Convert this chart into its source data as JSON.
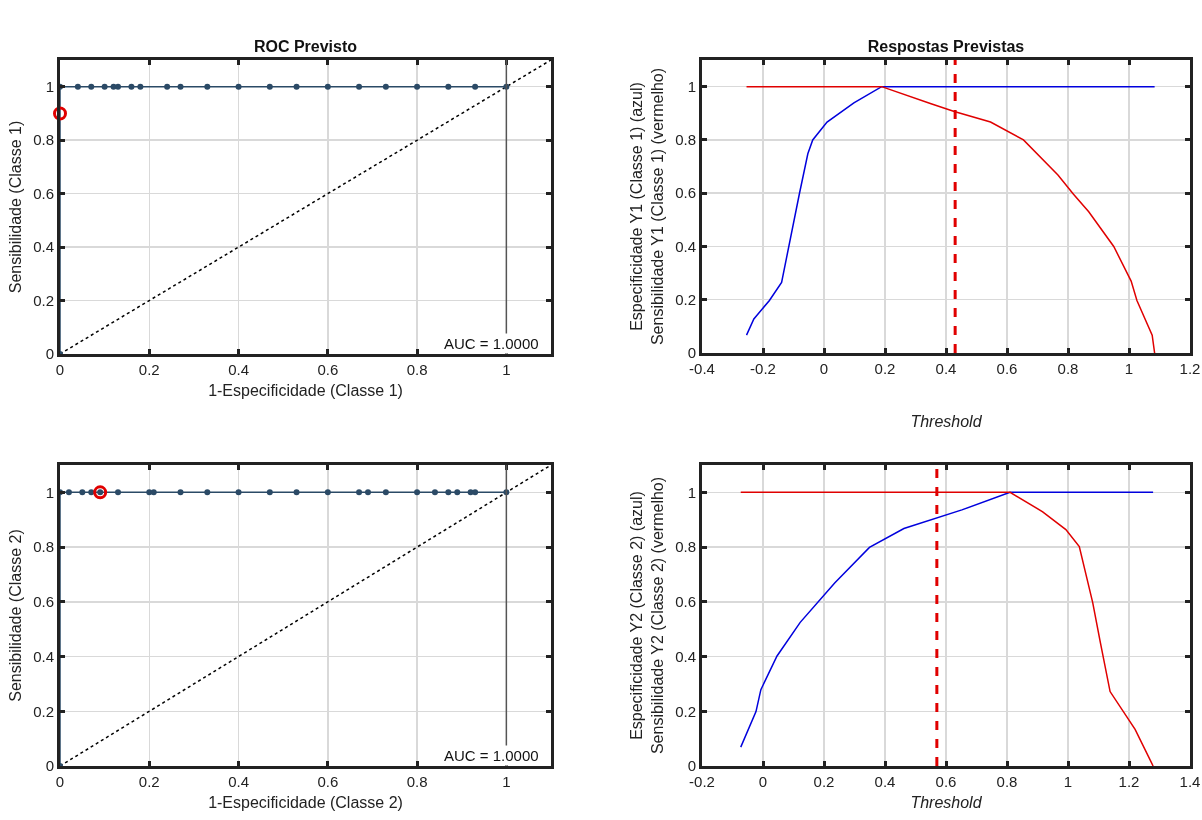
{
  "chart_data": [
    {
      "type": "line",
      "title": "ROC Previsto",
      "xlabel": "1-Especificidade (Classe 1)",
      "ylabel": "Sensibilidade (Classe 1)",
      "xlim": [
        0,
        1.1
      ],
      "ylim": [
        0,
        1.1
      ],
      "xticks": [
        0,
        0.2,
        0.4,
        0.6,
        0.8,
        1
      ],
      "yticks": [
        0,
        0.2,
        0.4,
        0.6,
        0.8,
        1
      ],
      "grid": true,
      "annotations": [
        "AUC = 1.0000"
      ],
      "ref_lines": [
        {
          "axis": "x",
          "value": 1,
          "color": "#555555"
        }
      ],
      "series": [
        {
          "color": "#000000",
          "line_style": "dotted",
          "marker": "none",
          "x": [
            0,
            1.1
          ],
          "values": [
            0,
            1.1
          ]
        },
        {
          "color": "#2b4a66",
          "marker": "circle",
          "x": [
            0,
            0,
            0.04,
            0.07,
            0.1,
            0.12,
            0.13,
            0.16,
            0.18,
            0.24,
            0.27,
            0.33,
            0.4,
            0.47,
            0.53,
            0.6,
            0.67,
            0.73,
            0.8,
            0.87,
            0.93,
            1
          ],
          "values": [
            0,
            1,
            1,
            1,
            1,
            1,
            1,
            1,
            1,
            1,
            1,
            1,
            1,
            1,
            1,
            1,
            1,
            1,
            1,
            1,
            1,
            1
          ]
        },
        {
          "type": "scatter",
          "color": "#e00000",
          "marker": "circle",
          "x": [
            0
          ],
          "values": [
            0.9
          ]
        }
      ]
    },
    {
      "type": "line",
      "title": "Respostas Previstas",
      "xlabel": "Threshold",
      "ylabel": "Especificidade Y1 (Classe 1) (azul)\nSensibilidade Y1 (Classe 1) (vermelho)",
      "xlim": [
        -0.4,
        1.2
      ],
      "ylim": [
        0,
        1.1
      ],
      "xticks": [
        -0.4,
        -0.2,
        0,
        0.2,
        0.4,
        0.6,
        0.8,
        1,
        1.2
      ],
      "yticks": [
        0,
        0.2,
        0.4,
        0.6,
        0.8,
        1
      ],
      "grid": true,
      "ref_lines": [
        {
          "axis": "x",
          "value": 0.43,
          "color": "#e00000",
          "line_style": "dashed"
        }
      ],
      "series": [
        {
          "color": "#0000dd",
          "marker": "none",
          "x": [
            -0.254,
            -0.23,
            -0.179,
            -0.139,
            -0.081,
            -0.053,
            -0.037,
            0.01,
            0.098,
            0.189,
            1.084
          ],
          "values": [
            0.067,
            0.128,
            0.197,
            0.265,
            0.596,
            0.748,
            0.8,
            0.867,
            0.939,
            1,
            1
          ]
        },
        {
          "color": "#e00000",
          "marker": "none",
          "x": [
            -0.254,
            0.189,
            0.351,
            0.427,
            0.546,
            0.654,
            0.767,
            0.818,
            0.868,
            0.95,
            1.007,
            1.026,
            1.076,
            1.084
          ],
          "values": [
            1,
            1,
            0.936,
            0.907,
            0.867,
            0.8,
            0.668,
            0.596,
            0.53,
            0.4,
            0.27,
            0.197,
            0.067,
            0
          ]
        }
      ]
    },
    {
      "type": "line",
      "xlabel": "1-Especificidade (Classe 2)",
      "ylabel": "Sensibilidade (Classe 2)",
      "xlim": [
        0,
        1.1
      ],
      "ylim": [
        0,
        1.1
      ],
      "xticks": [
        0,
        0.2,
        0.4,
        0.6,
        0.8,
        1
      ],
      "yticks": [
        0,
        0.2,
        0.4,
        0.6,
        0.8,
        1
      ],
      "grid": true,
      "annotations": [
        "AUC = 1.0000"
      ],
      "ref_lines": [
        {
          "axis": "x",
          "value": 1,
          "color": "#555555"
        }
      ],
      "series": [
        {
          "color": "#000000",
          "line_style": "dotted",
          "marker": "none",
          "x": [
            0,
            1.1
          ],
          "values": [
            0,
            1.1
          ]
        },
        {
          "color": "#2b4a66",
          "marker": "circle",
          "x": [
            0,
            0,
            0.02,
            0.05,
            0.07,
            0.09,
            0.13,
            0.2,
            0.21,
            0.27,
            0.33,
            0.4,
            0.47,
            0.53,
            0.6,
            0.67,
            0.69,
            0.73,
            0.8,
            0.84,
            0.87,
            0.89,
            0.92,
            0.93,
            1
          ],
          "values": [
            0,
            1,
            1,
            1,
            1,
            1,
            1,
            1,
            1,
            1,
            1,
            1,
            1,
            1,
            1,
            1,
            1,
            1,
            1,
            1,
            1,
            1,
            1,
            1,
            1
          ]
        },
        {
          "type": "scatter",
          "color": "#e00000",
          "marker": "circle",
          "x": [
            0.09
          ],
          "values": [
            1
          ]
        }
      ]
    },
    {
      "type": "line",
      "xlabel": "Threshold",
      "ylabel": "Especificidade Y2 (Classe 2) (azul)\nSensibilidade Y2 (Classe 2) (vermelho)",
      "xlim": [
        -0.2,
        1.4
      ],
      "ylim": [
        0,
        1.1
      ],
      "xticks": [
        -0.2,
        0,
        0.2,
        0.4,
        0.6,
        0.8,
        1,
        1.2,
        1.4
      ],
      "yticks": [
        0,
        0.2,
        0.4,
        0.6,
        0.8,
        1
      ],
      "grid": true,
      "ref_lines": [
        {
          "axis": "x",
          "value": 0.57,
          "color": "#e00000",
          "line_style": "dashed"
        }
      ],
      "series": [
        {
          "color": "#0000dd",
          "marker": "none",
          "x": [
            -0.073,
            -0.023,
            -0.007,
            0.046,
            0.122,
            0.235,
            0.349,
            0.462,
            0.652,
            0.81,
            1.279
          ],
          "values": [
            0.069,
            0.199,
            0.279,
            0.402,
            0.525,
            0.669,
            0.799,
            0.868,
            0.936,
            1,
            1
          ]
        },
        {
          "color": "#e00000",
          "marker": "none",
          "x": [
            -0.073,
            0.81,
            0.917,
            0.993,
            1.037,
            1.081,
            1.106,
            1.138,
            1.22,
            1.279
          ],
          "values": [
            1,
            1,
            0.929,
            0.864,
            0.802,
            0.597,
            0.452,
            0.272,
            0.134,
            0
          ]
        }
      ]
    }
  ]
}
